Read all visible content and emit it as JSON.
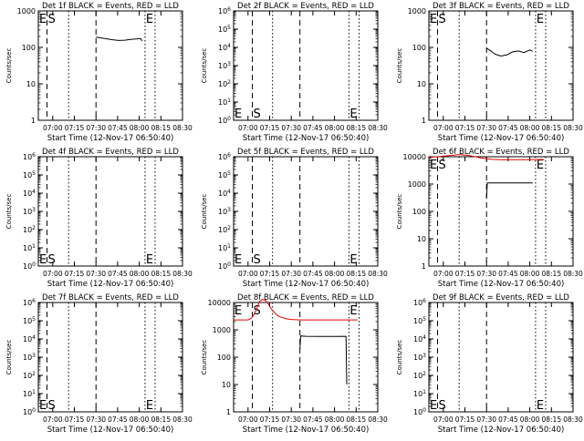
{
  "chart_data": [
    {
      "type": "line",
      "title": "Det 1f BLACK = Events, RED = LLD",
      "ylabel": "Counts/sec",
      "xlabel": "Start Time (12-Nov-17 06:50:40)",
      "yscale": "log",
      "ylim": [
        1,
        1000
      ],
      "yticks": [
        1,
        10,
        100,
        1000
      ],
      "yticklabels": [
        "1",
        "10",
        "100",
        "1000"
      ],
      "xlim": [
        0,
        100
      ],
      "xticks": [
        10,
        25,
        40,
        55,
        70,
        85,
        100
      ],
      "xticklabels": [
        "07:00",
        "07:15",
        "07:30",
        "07:45",
        "08:00",
        "08:15",
        "08:30"
      ],
      "markers": {
        "dashed_x": [
          6,
          40
        ],
        "dotted_x": [
          21,
          74,
          81
        ],
        "labels": [
          {
            "text": "E",
            "x": 0,
            "pos": "top"
          },
          {
            "text": "S",
            "x": 6,
            "pos": "top"
          },
          {
            "text": "E",
            "x": 74,
            "pos": "top"
          }
        ]
      },
      "series": [
        {
          "color": "black",
          "x": [
            40,
            44,
            48,
            52,
            56,
            60,
            64,
            68,
            71,
            72
          ],
          "y": [
            190,
            180,
            170,
            160,
            155,
            158,
            165,
            170,
            175,
            150
          ]
        }
      ]
    },
    {
      "type": "line",
      "title": "Det 2f BLACK = Events, RED = LLD",
      "ylabel": "Counts/sec",
      "xlabel": "Start Time (12-Nov-17 06:50:40)",
      "yscale": "log",
      "ylim": [
        1,
        1000000
      ],
      "yticks": [
        1,
        10,
        100,
        1000,
        10000,
        100000,
        1000000
      ],
      "yticklabels": [
        "10^0",
        "10^1",
        "10^2",
        "10^3",
        "10^4",
        "10^5",
        "10^6"
      ],
      "xlim": [
        0,
        100
      ],
      "xticks": [
        10,
        25,
        40,
        55,
        70,
        85,
        100
      ],
      "xticklabels": [
        "07:00",
        "07:15",
        "07:30",
        "07:45",
        "08:00",
        "08:15",
        "08:30"
      ],
      "markers": {
        "dashed_x": [
          13,
          46
        ],
        "dotted_x": [
          27,
          80,
          87
        ],
        "labels": [
          {
            "text": "E",
            "x": 0,
            "pos": "bottom"
          },
          {
            "text": "S",
            "x": 13,
            "pos": "bottom"
          },
          {
            "text": "E",
            "x": 80,
            "pos": "bottom"
          }
        ]
      },
      "series": []
    },
    {
      "type": "line",
      "title": "Det 3f BLACK = Events, RED = LLD",
      "ylabel": "Counts/sec",
      "xlabel": "Start Time (12-Nov-17 06:50:40)",
      "yscale": "log",
      "ylim": [
        1,
        1000
      ],
      "yticks": [
        1,
        10,
        100,
        1000
      ],
      "yticklabels": [
        "1",
        "10",
        "100",
        "1000"
      ],
      "xlim": [
        0,
        100
      ],
      "xticks": [
        10,
        25,
        40,
        55,
        70,
        85,
        100
      ],
      "xticklabels": [
        "07:00",
        "07:15",
        "07:30",
        "07:45",
        "08:00",
        "08:15",
        "08:30"
      ],
      "markers": {
        "dashed_x": [
          6,
          40
        ],
        "dotted_x": [
          21,
          74,
          81
        ],
        "labels": [
          {
            "text": "E",
            "x": 0,
            "pos": "top"
          },
          {
            "text": "S",
            "x": 6,
            "pos": "top"
          },
          {
            "text": "E",
            "x": 74,
            "pos": "top"
          }
        ]
      },
      "series": [
        {
          "color": "black",
          "x": [
            40,
            43,
            46,
            50,
            54,
            58,
            62,
            66,
            70,
            72
          ],
          "y": [
            95,
            80,
            65,
            58,
            62,
            75,
            80,
            72,
            85,
            78
          ]
        }
      ]
    },
    {
      "type": "line",
      "title": "Det 4f BLACK = Events, RED = LLD",
      "ylabel": "Counts/sec",
      "xlabel": "Start Time (12-Nov-17 06:50:40)",
      "yscale": "log",
      "ylim": [
        1,
        1000000
      ],
      "yticks": [
        1,
        10,
        100,
        1000,
        10000,
        100000,
        1000000
      ],
      "yticklabels": [
        "10^0",
        "10^1",
        "10^2",
        "10^3",
        "10^4",
        "10^5",
        "10^6"
      ],
      "xlim": [
        0,
        100
      ],
      "xticks": [
        10,
        25,
        40,
        55,
        70,
        85,
        100
      ],
      "xticklabels": [
        "07:00",
        "07:15",
        "07:30",
        "07:45",
        "08:00",
        "08:15",
        "08:30"
      ],
      "markers": {
        "dashed_x": [
          6,
          40
        ],
        "dotted_x": [
          21,
          74,
          81
        ],
        "labels": [
          {
            "text": "E",
            "x": 0,
            "pos": "bottom"
          },
          {
            "text": "S",
            "x": 6,
            "pos": "bottom"
          },
          {
            "text": "E",
            "x": 74,
            "pos": "bottom"
          }
        ]
      },
      "series": []
    },
    {
      "type": "line",
      "title": "Det 5f BLACK = Events, RED = LLD",
      "ylabel": "Counts/sec",
      "xlabel": "Start Time (12-Nov-17 06:50:40)",
      "yscale": "log",
      "ylim": [
        1,
        1000000
      ],
      "yticks": [
        1,
        10,
        100,
        1000,
        10000,
        100000,
        1000000
      ],
      "yticklabels": [
        "10^0",
        "10^1",
        "10^2",
        "10^3",
        "10^4",
        "10^5",
        "10^6"
      ],
      "xlim": [
        0,
        100
      ],
      "xticks": [
        10,
        25,
        40,
        55,
        70,
        85,
        100
      ],
      "xticklabels": [
        "07:00",
        "07:15",
        "07:30",
        "07:45",
        "08:00",
        "08:15",
        "08:30"
      ],
      "markers": {
        "dashed_x": [
          13,
          46
        ],
        "dotted_x": [
          27,
          80,
          87
        ],
        "labels": [
          {
            "text": "E",
            "x": 0,
            "pos": "bottom"
          },
          {
            "text": "S",
            "x": 13,
            "pos": "bottom"
          },
          {
            "text": "E",
            "x": 80,
            "pos": "bottom"
          }
        ]
      },
      "series": []
    },
    {
      "type": "line",
      "title": "Det 6f BLACK = Events, RED = LLD",
      "ylabel": "Counts/sec",
      "xlabel": "Start Time (12-Nov-17 06:50:40)",
      "yscale": "log",
      "ylim": [
        1,
        10000
      ],
      "yticks": [
        1,
        10,
        100,
        1000,
        10000
      ],
      "yticklabels": [
        "1",
        "10",
        "100",
        "1000",
        "10000"
      ],
      "xlim": [
        0,
        100
      ],
      "xticks": [
        10,
        25,
        40,
        55,
        70,
        85,
        100
      ],
      "xticklabels": [
        "07:00",
        "07:15",
        "07:30",
        "07:45",
        "08:00",
        "08:15",
        "08:30"
      ],
      "markers": {
        "dashed_x": [
          6,
          40
        ],
        "dotted_x": [
          21,
          74,
          81
        ],
        "labels": [
          {
            "text": "E",
            "x": 0,
            "pos": "top"
          },
          {
            "text": "S",
            "x": 6,
            "pos": "top"
          },
          {
            "text": "E",
            "x": 74,
            "pos": "top"
          }
        ]
      },
      "series": [
        {
          "color": "red",
          "x": [
            0,
            3,
            6,
            10,
            14,
            18,
            21,
            25,
            28,
            32,
            36,
            40,
            44,
            50,
            56,
            62,
            68,
            74,
            78,
            80
          ],
          "y": [
            9000,
            9800,
            10000,
            10500,
            11000,
            11500,
            12000,
            11500,
            11000,
            10000,
            9000,
            8500,
            8000,
            7800,
            7800,
            7800,
            7800,
            7900,
            7900,
            7900
          ]
        },
        {
          "color": "black",
          "x": [
            40,
            40.5,
            42,
            50,
            60,
            70,
            72
          ],
          "y": [
            300,
            1100,
            1100,
            1100,
            1100,
            1100,
            1100
          ]
        }
      ]
    },
    {
      "type": "line",
      "title": "Det 7f BLACK = Events, RED = LLD",
      "ylabel": "Counts/sec",
      "xlabel": "Start Time (12-Nov-17 06:50:40)",
      "yscale": "log",
      "ylim": [
        1,
        1000000
      ],
      "yticks": [
        1,
        10,
        100,
        1000,
        10000,
        100000,
        1000000
      ],
      "yticklabels": [
        "10^0",
        "10^1",
        "10^2",
        "10^3",
        "10^4",
        "10^5",
        "10^6"
      ],
      "xlim": [
        0,
        100
      ],
      "xticks": [
        10,
        25,
        40,
        55,
        70,
        85,
        100
      ],
      "xticklabels": [
        "07:00",
        "07:15",
        "07:30",
        "07:45",
        "08:00",
        "08:15",
        "08:30"
      ],
      "markers": {
        "dashed_x": [
          6,
          40
        ],
        "dotted_x": [
          21,
          74,
          81
        ],
        "labels": [
          {
            "text": "E",
            "x": 0,
            "pos": "bottom"
          },
          {
            "text": "S",
            "x": 6,
            "pos": "bottom"
          },
          {
            "text": "E",
            "x": 74,
            "pos": "bottom"
          }
        ]
      },
      "series": []
    },
    {
      "type": "line",
      "title": "Det 8f BLACK = Events, RED = LLD",
      "ylabel": "Counts/sec",
      "xlabel": "Start Time (12-Nov-17 06:50:40)",
      "yscale": "log",
      "ylim": [
        1,
        10000
      ],
      "yticks": [
        1,
        10,
        100,
        1000,
        10000
      ],
      "yticklabels": [
        "1",
        "10",
        "100",
        "1000",
        "10000"
      ],
      "xlim": [
        0,
        100
      ],
      "xticks": [
        10,
        25,
        40,
        55,
        70,
        85,
        100
      ],
      "xticklabels": [
        "07:00",
        "07:15",
        "07:30",
        "07:45",
        "08:00",
        "08:15",
        "08:30"
      ],
      "markers": {
        "dashed_x": [
          13,
          46
        ],
        "dotted_x": [
          27,
          80,
          87
        ],
        "labels": [
          {
            "text": "E",
            "x": 0,
            "pos": "top"
          },
          {
            "text": "S",
            "x": 13,
            "pos": "top"
          },
          {
            "text": "E",
            "x": 80,
            "pos": "top"
          }
        ]
      },
      "series": [
        {
          "color": "red",
          "x": [
            0,
            4,
            8,
            10,
            12,
            14,
            16,
            18,
            20,
            22,
            24,
            26,
            28,
            30,
            32,
            36,
            40,
            46,
            50,
            55,
            60,
            70,
            80,
            85,
            86
          ],
          "y": [
            2300,
            2300,
            2300,
            2300,
            2600,
            3500,
            6000,
            11000,
            13000,
            12000,
            9000,
            6000,
            4500,
            3500,
            3000,
            2600,
            2400,
            2300,
            2300,
            2300,
            2300,
            2300,
            2300,
            2300,
            2300
          ]
        },
        {
          "color": "black",
          "x": [
            46,
            46.5,
            50,
            60,
            70,
            78,
            78.5
          ],
          "y": [
            200,
            600,
            580,
            570,
            570,
            580,
            10
          ]
        }
      ]
    },
    {
      "type": "line",
      "title": "Det 9f BLACK = Events, RED = LLD",
      "ylabel": "Counts/sec",
      "xlabel": "Start Time (12-Nov-17 06:50:40)",
      "yscale": "log",
      "ylim": [
        1,
        1000000
      ],
      "yticks": [
        1,
        10,
        100,
        1000,
        10000,
        100000,
        1000000
      ],
      "yticklabels": [
        "10^0",
        "10^1",
        "10^2",
        "10^3",
        "10^4",
        "10^5",
        "10^6"
      ],
      "xlim": [
        0,
        100
      ],
      "xticks": [
        10,
        25,
        40,
        55,
        70,
        85,
        100
      ],
      "xticklabels": [
        "07:00",
        "07:15",
        "07:30",
        "07:45",
        "08:00",
        "08:15",
        "08:30"
      ],
      "markers": {
        "dashed_x": [
          6,
          40
        ],
        "dotted_x": [
          21,
          74,
          81
        ],
        "labels": [
          {
            "text": "E",
            "x": 0,
            "pos": "bottom"
          },
          {
            "text": "S",
            "x": 6,
            "pos": "bottom"
          },
          {
            "text": "E",
            "x": 74,
            "pos": "bottom"
          }
        ]
      },
      "series": []
    }
  ]
}
